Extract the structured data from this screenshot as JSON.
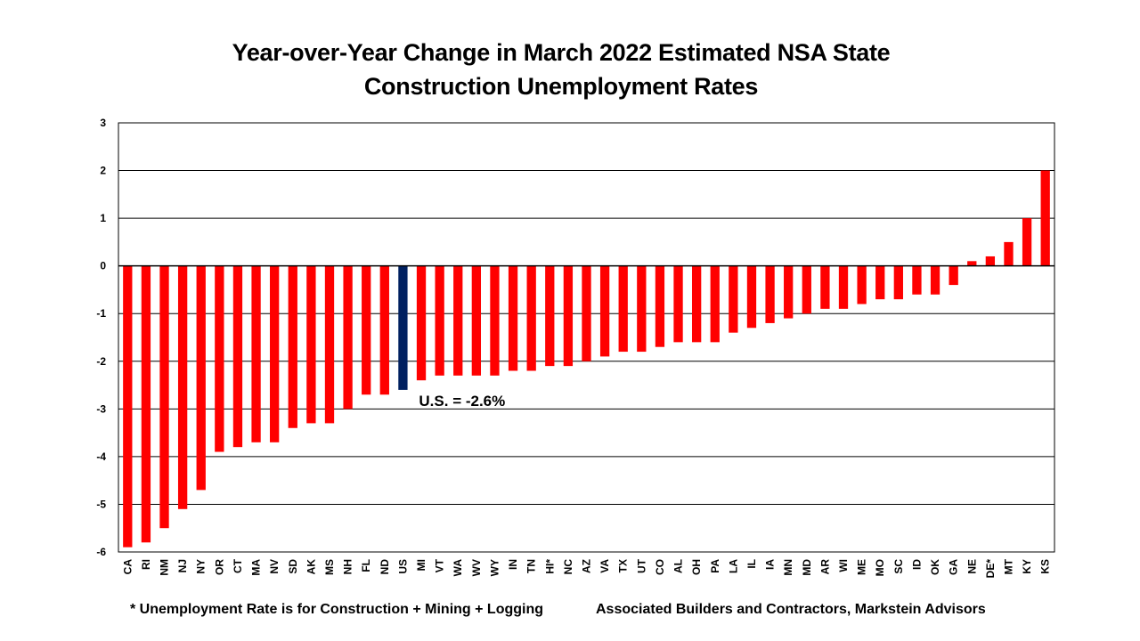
{
  "chart_data": {
    "type": "bar",
    "title_lines": [
      "Year-over-Year Change in March 2022 Estimated NSA State",
      "Construction Unemployment Rates"
    ],
    "categories": [
      "CA",
      "RI",
      "NM",
      "NJ",
      "NY",
      "OR",
      "CT",
      "MA",
      "NV",
      "SD",
      "AK",
      "MS",
      "NH",
      "FL",
      "ND",
      "US",
      "MI",
      "VT",
      "WA",
      "WV",
      "WY",
      "IN",
      "TN",
      "HI*",
      "NC",
      "AZ",
      "VA",
      "TX",
      "UT",
      "CO",
      "AL",
      "OH",
      "PA",
      "LA",
      "IL",
      "IA",
      "MN",
      "MD",
      "AR",
      "WI",
      "ME",
      "MO",
      "SC",
      "ID",
      "OK",
      "GA",
      "NE",
      "DE*",
      "MT",
      "KY",
      "KS"
    ],
    "values": [
      -5.9,
      -5.8,
      -5.5,
      -5.1,
      -4.7,
      -3.9,
      -3.8,
      -3.7,
      -3.7,
      -3.4,
      -3.3,
      -3.3,
      -3.0,
      -2.7,
      -2.7,
      -2.6,
      -2.4,
      -2.3,
      -2.3,
      -2.3,
      -2.3,
      -2.2,
      -2.2,
      -2.1,
      -2.1,
      -2.0,
      -1.9,
      -1.8,
      -1.8,
      -1.7,
      -1.6,
      -1.6,
      -1.6,
      -1.4,
      -1.3,
      -1.2,
      -1.1,
      -1.0,
      -0.9,
      -0.9,
      -0.8,
      -0.7,
      -0.7,
      -0.6,
      -0.6,
      -0.4,
      0.1,
      0.2,
      0.5,
      1.0,
      2.0
    ],
    "ylim": [
      -6,
      3
    ],
    "yticks": [
      3,
      2,
      1,
      0,
      -1,
      -2,
      -3,
      -4,
      -5,
      -6
    ],
    "ytick_labels": [
      "3",
      "2",
      "1",
      "0",
      "-1",
      "-2",
      "-3",
      "-4",
      "-5",
      "-6"
    ],
    "xlabel": "",
    "ylabel": "",
    "grid": true,
    "highlight_category": "US",
    "annotation": "U.S. = -2.6%",
    "colors": {
      "bar": "#ff0000",
      "highlight": "#002060",
      "grid": "#000000"
    }
  },
  "footnotes": {
    "left": "* Unemployment Rate is for Construction + Mining + Logging",
    "right": "Associated Builders and Contractors, Markstein Advisors"
  }
}
